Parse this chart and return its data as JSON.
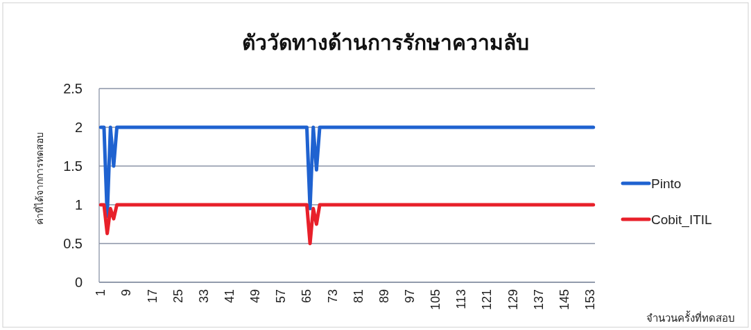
{
  "chart_data": {
    "type": "line",
    "title": "ตัววัดทางด้านการรักษาความลับ",
    "xlabel": "จำนวนครั้งที่ทดสอบ",
    "ylabel": "ค่าที่ได้จากการทดสอบ",
    "categories": [
      "1",
      null,
      null,
      null,
      null,
      null,
      null,
      null,
      "9",
      null,
      null,
      null,
      null,
      null,
      null,
      null,
      "17",
      null,
      null,
      null,
      null,
      null,
      null,
      null,
      "25",
      null,
      null,
      null,
      null,
      null,
      null,
      null,
      "33",
      null,
      null,
      null,
      null,
      null,
      null,
      null,
      "41",
      null,
      null,
      null,
      null,
      null,
      null,
      null,
      "49",
      null,
      null,
      null,
      null,
      null,
      null,
      null,
      "57",
      null,
      null,
      null,
      null,
      null,
      null,
      null,
      "65",
      null,
      null,
      null,
      null,
      null,
      null,
      null,
      "73",
      null,
      null,
      null,
      null,
      null,
      null,
      null,
      "81",
      null,
      null,
      null,
      null,
      null,
      null,
      null,
      "89",
      null,
      null,
      null,
      null,
      null,
      null,
      null,
      "97",
      null,
      null,
      null,
      null,
      null,
      null,
      null,
      "105",
      null,
      null,
      null,
      null,
      null,
      null,
      null,
      "113",
      null,
      null,
      null,
      null,
      null,
      null,
      null,
      "121",
      null,
      null,
      null,
      null,
      null,
      null,
      null,
      "129",
      null,
      null,
      null,
      null,
      null,
      null,
      null,
      "137",
      null,
      null,
      null,
      null,
      null,
      null,
      null,
      "145",
      null,
      null,
      null,
      null,
      null,
      null,
      null,
      "153",
      null
    ],
    "series": [
      {
        "name": "Pinto",
        "color": "#1f62d0",
        "values": [
          2,
          2,
          0.85,
          2,
          1.5,
          2,
          2,
          2,
          2,
          2,
          2,
          2,
          2,
          2,
          2,
          2,
          2,
          2,
          2,
          2,
          2,
          2,
          2,
          2,
          2,
          2,
          2,
          2,
          2,
          2,
          2,
          2,
          2,
          2,
          2,
          2,
          2,
          2,
          2,
          2,
          2,
          2,
          2,
          2,
          2,
          2,
          2,
          2,
          2,
          2,
          2,
          2,
          2,
          2,
          2,
          2,
          2,
          2,
          2,
          2,
          2,
          2,
          2,
          2,
          2,
          0.95,
          2,
          1.45,
          2,
          2,
          2,
          2,
          2,
          2,
          2,
          2,
          2,
          2,
          2,
          2,
          2,
          2,
          2,
          2,
          2,
          2,
          2,
          2,
          2,
          2,
          2,
          2,
          2,
          2,
          2,
          2,
          2,
          2,
          2,
          2,
          2,
          2,
          2,
          2,
          2,
          2,
          2,
          2,
          2,
          2,
          2,
          2,
          2,
          2,
          2,
          2,
          2,
          2,
          2,
          2,
          2,
          2,
          2,
          2,
          2,
          2,
          2,
          2,
          2,
          2,
          2,
          2,
          2,
          2,
          2,
          2,
          2,
          2,
          2,
          2,
          2,
          2,
          2,
          2,
          2,
          2,
          2,
          2,
          2,
          2,
          2,
          2,
          2,
          2
        ]
      },
      {
        "name": "Cobit_ITIL",
        "color": "#e8202a",
        "values": [
          1,
          1,
          0.63,
          0.95,
          0.82,
          1,
          1,
          1,
          1,
          1,
          1,
          1,
          1,
          1,
          1,
          1,
          1,
          1,
          1,
          1,
          1,
          1,
          1,
          1,
          1,
          1,
          1,
          1,
          1,
          1,
          1,
          1,
          1,
          1,
          1,
          1,
          1,
          1,
          1,
          1,
          1,
          1,
          1,
          1,
          1,
          1,
          1,
          1,
          1,
          1,
          1,
          1,
          1,
          1,
          1,
          1,
          1,
          1,
          1,
          1,
          1,
          1,
          1,
          1,
          1,
          0.5,
          0.95,
          0.75,
          1,
          1,
          1,
          1,
          1,
          1,
          1,
          1,
          1,
          1,
          1,
          1,
          1,
          1,
          1,
          1,
          1,
          1,
          1,
          1,
          1,
          1,
          1,
          1,
          1,
          1,
          1,
          1,
          1,
          1,
          1,
          1,
          1,
          1,
          1,
          1,
          1,
          1,
          1,
          1,
          1,
          1,
          1,
          1,
          1,
          1,
          1,
          1,
          1,
          1,
          1,
          1,
          1,
          1,
          1,
          1,
          1,
          1,
          1,
          1,
          1,
          1,
          1,
          1,
          1,
          1,
          1,
          1,
          1,
          1,
          1,
          1,
          1,
          1,
          1,
          1,
          1,
          1,
          1,
          1,
          1,
          1,
          1,
          1,
          1,
          1
        ]
      }
    ],
    "ylim": [
      0,
      2.5
    ],
    "yticks": [
      0,
      0.5,
      1,
      1.5,
      2,
      2.5
    ],
    "grid": "y",
    "legend": "right",
    "marker": "none",
    "line_style": "solid"
  }
}
